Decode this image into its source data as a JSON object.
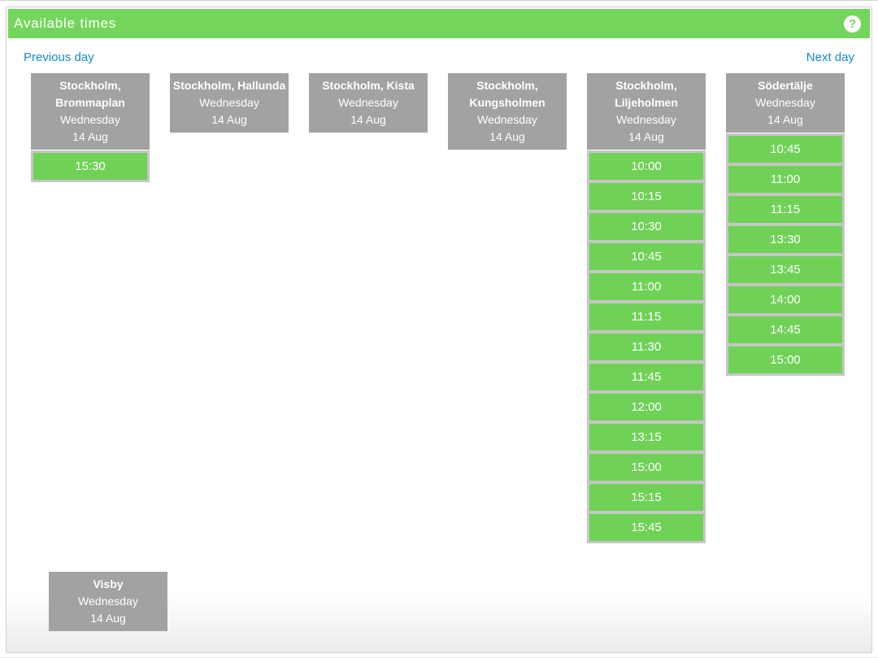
{
  "title_bar": {
    "title": "Available times",
    "help_icon": "?"
  },
  "nav": {
    "previous_label": "Previous day",
    "next_label": "Next day"
  },
  "colors": {
    "header_green": "#74d55c",
    "slot_green": "#6fd257",
    "column_gray": "#a2a2a2",
    "slot_bg_gray": "#c6c6c6",
    "link_blue": "#1489d3"
  },
  "columns": [
    {
      "location": "Stockholm, Brommaplan",
      "day": "Wednesday",
      "date": "14 Aug",
      "times": [
        "15:30"
      ]
    },
    {
      "location": "Stockholm, Hallunda",
      "day": "Wednesday",
      "date": "14 Aug",
      "times": []
    },
    {
      "location": "Stockholm, Kista",
      "day": "Wednesday",
      "date": "14 Aug",
      "times": []
    },
    {
      "location": "Stockholm, Kungsholmen",
      "day": "Wednesday",
      "date": "14 Aug",
      "times": []
    },
    {
      "location": "Stockholm, Liljeholmen",
      "day": "Wednesday",
      "date": "14 Aug",
      "times": [
        "10:00",
        "10:15",
        "10:30",
        "10:45",
        "11:00",
        "11:15",
        "11:30",
        "11:45",
        "12:00",
        "13:15",
        "15:00",
        "15:15",
        "15:45"
      ]
    },
    {
      "location": "Södertälje",
      "day": "Wednesday",
      "date": "14 Aug",
      "times": [
        "10:45",
        "11:00",
        "11:15",
        "13:30",
        "13:45",
        "14:00",
        "14:45",
        "15:00"
      ]
    }
  ],
  "second_row_columns": [
    {
      "location": "Visby",
      "day": "Wednesday",
      "date": "14 Aug",
      "times": []
    }
  ]
}
